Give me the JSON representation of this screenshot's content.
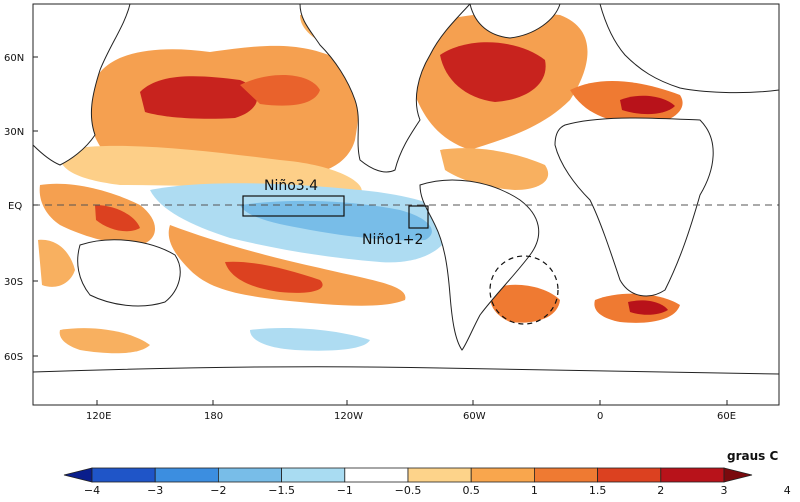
{
  "map": {
    "lat_labels": [
      "60N",
      "30N",
      "EQ",
      "30S",
      "60S"
    ],
    "lon_labels": [
      "120E",
      "180",
      "120W",
      "60W",
      "0",
      "60E"
    ],
    "regions": [
      {
        "id": "nino34",
        "label": "Niño3.4"
      },
      {
        "id": "nino12",
        "label": "Niño1+2"
      }
    ],
    "units": "graus C"
  },
  "colorbar": {
    "ticks": [
      "−4",
      "−3",
      "−2",
      "−1.5",
      "−1",
      "−0.5",
      "0.5",
      "1",
      "1.5",
      "2",
      "3",
      "4"
    ],
    "colors": [
      "#0a1e8c",
      "#1f55c8",
      "#3c8ee0",
      "#78bde8",
      "#a9dcf2",
      "#ffffff",
      "#fdd38a",
      "#f9a64d",
      "#ef7a32",
      "#dc4120",
      "#b8121a",
      "#7a0a0e"
    ]
  }
}
